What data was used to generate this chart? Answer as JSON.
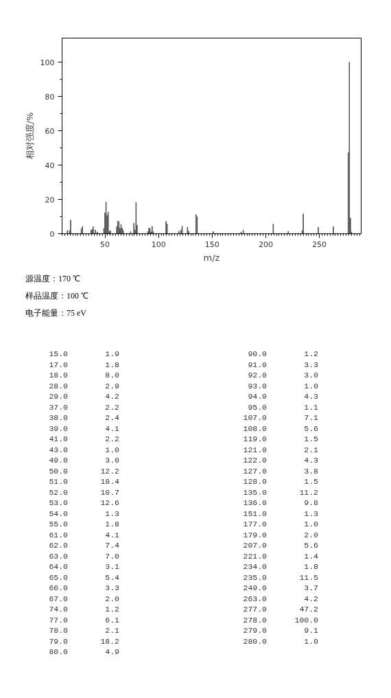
{
  "chart_data": [
    {
      "type": "bar",
      "xlabel": "m/z",
      "ylabel": "相对强度/%",
      "x": [
        15,
        17,
        18,
        28,
        29,
        37,
        38,
        39,
        41,
        43,
        49,
        50,
        51,
        52,
        53,
        54,
        55,
        61,
        62,
        63,
        64,
        65,
        66,
        67,
        74,
        77,
        78,
        79,
        80,
        90,
        91,
        92,
        93,
        94,
        95,
        107,
        108,
        119,
        121,
        122,
        127,
        128,
        135,
        136,
        151,
        177,
        179,
        207,
        221,
        234,
        235,
        249,
        263,
        277,
        278,
        279,
        280
      ],
      "values": [
        1.9,
        1.8,
        8.0,
        2.9,
        4.2,
        2.2,
        2.4,
        4.1,
        2.2,
        1.0,
        3.0,
        12.2,
        18.4,
        10.7,
        12.6,
        1.3,
        1.8,
        4.1,
        7.4,
        7.0,
        3.1,
        5.4,
        3.3,
        2.0,
        1.2,
        6.1,
        2.1,
        18.2,
        4.9,
        1.2,
        3.3,
        3.0,
        1.0,
        4.3,
        1.1,
        7.1,
        5.6,
        1.5,
        2.1,
        4.3,
        3.8,
        1.5,
        11.2,
        9.8,
        1.3,
        1.0,
        2.0,
        5.6,
        1.4,
        1.8,
        11.5,
        3.7,
        4.2,
        47.2,
        100.0,
        9.1,
        1.0
      ],
      "color": "#555555",
      "xlim": [
        10,
        289
      ],
      "xticks": [
        50,
        100,
        150,
        200,
        250
      ],
      "ylim": [
        0,
        114
      ],
      "yticks": [
        0,
        20,
        40,
        60,
        80,
        100
      ],
      "grid": false,
      "annotations": [
        "源温度：170 ℃",
        "样品温度：100 ℃",
        "电子能量：75 eV"
      ]
    },
    {
      "type": "other",
      "categories": [
        "15.0",
        "17.0",
        "18.0",
        "28.0",
        "29.0",
        "37.0",
        "38.0",
        "39.0",
        "41.0",
        "43.0",
        "49.0",
        "50.0",
        "51.0",
        "52.0",
        "53.0",
        "54.0",
        "55.0",
        "61.0",
        "62.0",
        "63.0",
        "64.0",
        "65.0",
        "66.0",
        "67.0",
        "74.0",
        "77.0",
        "78.0",
        "79.0",
        "80.0",
        "90.0",
        "91.0",
        "92.0",
        "93.0",
        "94.0",
        "95.0",
        "107.0",
        "108.0",
        "119.0",
        "121.0",
        "122.0",
        "127.0",
        "128.0",
        "135.0",
        "136.0",
        "151.0",
        "177.0",
        "179.0",
        "207.0",
        "221.0",
        "234.0",
        "235.0",
        "249.0",
        "263.0",
        "277.0",
        "278.0",
        "279.0",
        "280.0"
      ],
      "value_labels": [
        "1.9",
        "1.8",
        "8.0",
        "2.9",
        "4.2",
        "2.2",
        "2.4",
        "4.1",
        "2.2",
        "1.0",
        "3.0",
        "12.2",
        "18.4",
        "10.7",
        "12.6",
        "1.3",
        "1.8",
        "4.1",
        "7.4",
        "7.0",
        "3.1",
        "5.4",
        "3.3",
        "2.0",
        "1.2",
        "6.1",
        "2.1",
        "18.2",
        "4.9",
        "1.2",
        "3.3",
        "3.0",
        "1.0",
        "4.3",
        "1.1",
        "7.1",
        "5.6",
        "1.5",
        "2.1",
        "4.3",
        "3.8",
        "1.5",
        "11.2",
        "9.8",
        "1.3",
        "1.0",
        "2.0",
        "5.6",
        "1.4",
        "1.8",
        "11.5",
        "3.7",
        "4.2",
        "47.2",
        "100.0",
        "9.1",
        "1.0"
      ],
      "values": [
        1.9,
        1.8,
        8.0,
        2.9,
        4.2,
        2.2,
        2.4,
        4.1,
        2.2,
        1.0,
        3.0,
        12.2,
        18.4,
        10.7,
        12.6,
        1.3,
        1.8,
        4.1,
        7.4,
        7.0,
        3.1,
        5.4,
        3.3,
        2.0,
        1.2,
        6.1,
        2.1,
        18.2,
        4.9,
        1.2,
        3.3,
        3.0,
        1.0,
        4.3,
        1.1,
        7.1,
        5.6,
        1.5,
        2.1,
        4.3,
        3.8,
        1.5,
        11.2,
        9.8,
        1.3,
        1.0,
        2.0,
        5.6,
        1.4,
        1.8,
        11.5,
        3.7,
        4.2,
        47.2,
        100.0,
        9.1,
        1.0
      ]
    }
  ]
}
